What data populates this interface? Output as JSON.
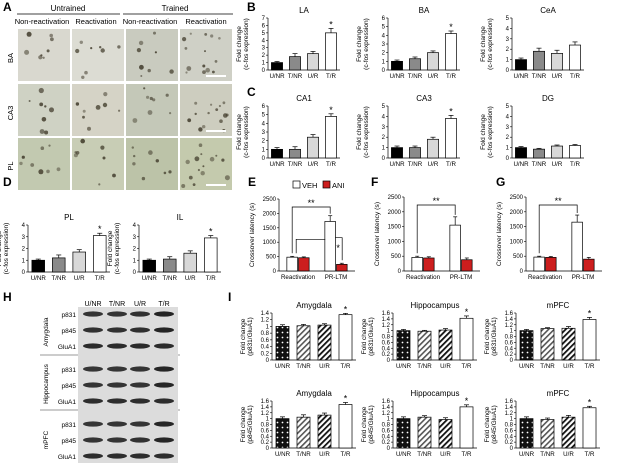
{
  "panel_letters": [
    "A",
    "B",
    "C",
    "D",
    "E",
    "F",
    "G",
    "H",
    "I"
  ],
  "panel_a": {
    "group_headers": [
      "Untrained",
      "Trained"
    ],
    "conditions": [
      "Non-reactivation",
      "Reactivation",
      "Non-reactivation",
      "Reactivation"
    ],
    "regions": [
      "BA",
      "CA3",
      "PL"
    ]
  },
  "panel_h": {
    "lanes": [
      "U/NR",
      "T/NR",
      "U/R",
      "T/R"
    ],
    "bands": [
      "p831",
      "p845",
      "GluA1"
    ],
    "regions": [
      "Amygdala",
      "Hippocampus",
      "mPFC"
    ]
  },
  "panel_e_legend": [
    "VEH",
    "ANI"
  ],
  "colors": {
    "black": "#000000",
    "grey": "#8a8a8a",
    "lightgrey": "#d8d8d8",
    "white": "#ffffff",
    "red": "#cc1e1e"
  },
  "chart_data": [
    {
      "id": "B-LA",
      "panel": "B",
      "type": "bar",
      "title": "LA",
      "ylabel": "Fold change (c-fos expression)",
      "categories": [
        "U/NR",
        "T/NR",
        "U/R",
        "T/R"
      ],
      "values": [
        1.0,
        1.8,
        2.2,
        5.0
      ],
      "errors": [
        0.15,
        0.4,
        0.3,
        0.6
      ],
      "ylim": [
        0,
        7
      ],
      "yticks": [
        0,
        1,
        2,
        3,
        4,
        5,
        6,
        7
      ],
      "fills": [
        "black",
        "grey",
        "lightgrey",
        "white"
      ],
      "star_on": [
        3
      ]
    },
    {
      "id": "B-BA",
      "panel": "B",
      "type": "bar",
      "title": "BA",
      "ylabel": "Fold change (c-fos expression)",
      "categories": [
        "U/NR",
        "T/NR",
        "U/R",
        "T/R"
      ],
      "values": [
        1.0,
        1.3,
        2.0,
        4.2
      ],
      "errors": [
        0.15,
        0.2,
        0.2,
        0.3
      ],
      "ylim": [
        0,
        6
      ],
      "yticks": [
        0,
        1,
        2,
        3,
        4,
        5,
        6
      ],
      "fills": [
        "black",
        "grey",
        "lightgrey",
        "white"
      ],
      "star_on": [
        3
      ]
    },
    {
      "id": "B-CeA",
      "panel": "B",
      "type": "bar",
      "title": "CeA",
      "ylabel": "Fold change (c-fos expression)",
      "categories": [
        "U/NR",
        "T/NR",
        "U/R",
        "T/R"
      ],
      "values": [
        1.0,
        1.8,
        1.6,
        2.4
      ],
      "errors": [
        0.15,
        0.3,
        0.3,
        0.3
      ],
      "ylim": [
        0,
        5
      ],
      "yticks": [
        0,
        1,
        2,
        3,
        4,
        5
      ],
      "fills": [
        "black",
        "grey",
        "lightgrey",
        "white"
      ],
      "star_on": []
    },
    {
      "id": "C-CA1",
      "panel": "C",
      "type": "bar",
      "title": "CA1",
      "ylabel": "Fold change (c-fos expression)",
      "categories": [
        "U/NR",
        "T/NR",
        "U/R",
        "T/R"
      ],
      "values": [
        1.0,
        1.0,
        2.4,
        4.8
      ],
      "errors": [
        0.2,
        0.3,
        0.3,
        0.3
      ],
      "ylim": [
        0,
        6
      ],
      "yticks": [
        0,
        1,
        2,
        3,
        4,
        5,
        6
      ],
      "fills": [
        "black",
        "grey",
        "lightgrey",
        "white"
      ],
      "star_on": [
        3
      ]
    },
    {
      "id": "C-CA3",
      "panel": "C",
      "type": "bar",
      "title": "CA3",
      "ylabel": "Fold change (c-fos expression)",
      "categories": [
        "U/NR",
        "T/NR",
        "U/R",
        "T/R"
      ],
      "values": [
        1.0,
        1.0,
        1.8,
        3.8
      ],
      "errors": [
        0.15,
        0.15,
        0.2,
        0.3
      ],
      "ylim": [
        0,
        5
      ],
      "yticks": [
        0,
        1,
        2,
        3,
        4,
        5
      ],
      "fills": [
        "black",
        "grey",
        "lightgrey",
        "white"
      ],
      "star_on": [
        3
      ]
    },
    {
      "id": "C-DG",
      "panel": "C",
      "type": "bar",
      "title": "DG",
      "ylabel": "Fold change (c-fos expression)",
      "categories": [
        "U/NR",
        "T/NR",
        "U/R",
        "T/R"
      ],
      "values": [
        1.0,
        0.85,
        1.15,
        1.2
      ],
      "errors": [
        0.1,
        0.08,
        0.1,
        0.1
      ],
      "ylim": [
        0,
        5
      ],
      "yticks": [
        0,
        1,
        2,
        3,
        4,
        5
      ],
      "fills": [
        "black",
        "grey",
        "lightgrey",
        "white"
      ],
      "star_on": []
    },
    {
      "id": "D-PL",
      "panel": "D",
      "type": "bar",
      "title": "PL",
      "ylabel": "Fold change (c-fos expression)",
      "categories": [
        "U/NR",
        "T/NR",
        "U/R",
        "T/R"
      ],
      "values": [
        1.0,
        1.2,
        1.7,
        3.1
      ],
      "errors": [
        0.1,
        0.25,
        0.2,
        0.2
      ],
      "ylim": [
        0,
        4
      ],
      "yticks": [
        0,
        1,
        2,
        3,
        4
      ],
      "fills": [
        "black",
        "grey",
        "lightgrey",
        "white"
      ],
      "star_on": [
        3
      ]
    },
    {
      "id": "D-IL",
      "panel": "D",
      "type": "bar",
      "title": "IL",
      "ylabel": "Fold change (c-fos expression)",
      "categories": [
        "U/NR",
        "T/NR",
        "U/R",
        "T/R"
      ],
      "values": [
        1.0,
        1.1,
        1.6,
        2.9
      ],
      "errors": [
        0.1,
        0.2,
        0.2,
        0.2
      ],
      "ylim": [
        0,
        4
      ],
      "yticks": [
        0,
        1,
        2,
        3,
        4
      ],
      "fills": [
        "black",
        "grey",
        "lightgrey",
        "white"
      ],
      "star_on": [
        3
      ]
    },
    {
      "id": "E",
      "panel": "E",
      "type": "grouped_bar",
      "ylabel": "Crossover latency (s)",
      "categories": [
        "Reactivation",
        "PR-LTM"
      ],
      "series": [
        {
          "name": "VEH",
          "values": [
            480,
            1720
          ],
          "errors": [
            30,
            200
          ]
        },
        {
          "name": "ANI",
          "values": [
            460,
            230
          ],
          "errors": [
            30,
            40
          ]
        }
      ],
      "ylim": [
        0,
        2500
      ],
      "yticks": [
        0,
        500,
        1000,
        1500,
        2000,
        2500
      ],
      "sig": [
        "**",
        "*"
      ]
    },
    {
      "id": "F",
      "panel": "F",
      "type": "grouped_bar",
      "ylabel": "Crossover latency (s)",
      "categories": [
        "Reactivation",
        "PR-LTM"
      ],
      "series": [
        {
          "name": "VEH",
          "values": [
            460,
            1550
          ],
          "errors": [
            40,
            280
          ]
        },
        {
          "name": "ANI",
          "values": [
            440,
            380
          ],
          "errors": [
            40,
            60
          ]
        }
      ],
      "ylim": [
        0,
        2500
      ],
      "yticks": [
        0,
        500,
        1000,
        1500,
        2000,
        2500
      ],
      "sig": [
        "**"
      ]
    },
    {
      "id": "G",
      "panel": "G",
      "type": "grouped_bar",
      "ylabel": "Crossover latency (s)",
      "categories": [
        "Reactivation",
        "PR-LTM"
      ],
      "series": [
        {
          "name": "VEH",
          "values": [
            470,
            1650
          ],
          "errors": [
            30,
            240
          ]
        },
        {
          "name": "ANI",
          "values": [
            460,
            400
          ],
          "errors": [
            30,
            60
          ]
        }
      ],
      "ylim": [
        0,
        2500
      ],
      "yticks": [
        0,
        500,
        1000,
        1500,
        2000,
        2500
      ],
      "sig": [
        "**"
      ]
    },
    {
      "id": "I-amy-p831",
      "panel": "I",
      "type": "bar",
      "title": "Amygdala",
      "ylabel": "Fold change (p831/GluA1)",
      "categories": [
        "U/NR",
        "T/NR",
        "U/R",
        "T/R"
      ],
      "values": [
        1.0,
        1.02,
        1.04,
        1.35
      ],
      "errors": [
        0.05,
        0.04,
        0.04,
        0.04
      ],
      "ylim": [
        0,
        1.4
      ],
      "yticks": [
        "0",
        "0.2",
        "0.4",
        "0.6",
        "0.8",
        "1",
        "1.2",
        "1.4"
      ],
      "patterns": [
        "dots",
        "stripe",
        "hatch",
        "white"
      ],
      "star_on": [
        3
      ]
    },
    {
      "id": "I-hip-p831",
      "panel": "I",
      "type": "bar",
      "title": "Hippocampus",
      "ylabel": "Fold change (p831/GluA1)",
      "categories": [
        "U/NR",
        "T/NR",
        "U/R",
        "T/R"
      ],
      "values": [
        1.0,
        0.98,
        1.02,
        1.42
      ],
      "errors": [
        0.04,
        0.03,
        0.05,
        0.08
      ],
      "ylim": [
        0,
        1.6
      ],
      "yticks": [
        "0",
        "0.2",
        "0.4",
        "0.6",
        "0.8",
        "1",
        "1.2",
        "1.4",
        "1.6"
      ],
      "patterns": [
        "dots",
        "stripe",
        "hatch",
        "white"
      ],
      "star_on": [
        3
      ]
    },
    {
      "id": "I-mpfc-p831",
      "panel": "I",
      "type": "bar",
      "title": "mPFC",
      "ylabel": "Fold change (p831/GluA1)",
      "categories": [
        "U/NR",
        "T/NR",
        "U/R",
        "T/R"
      ],
      "values": [
        1.0,
        1.07,
        1.08,
        1.38
      ],
      "errors": [
        0.04,
        0.03,
        0.06,
        0.07
      ],
      "ylim": [
        0,
        1.6
      ],
      "yticks": [
        "0",
        "0.2",
        "0.4",
        "0.6",
        "0.8",
        "1",
        "1.2",
        "1.4",
        "1.6"
      ],
      "patterns": [
        "dots",
        "stripe",
        "hatch",
        "white"
      ],
      "star_on": [
        3
      ]
    },
    {
      "id": "I-amy-p845",
      "panel": "I",
      "type": "bar",
      "title": "Amygdala",
      "ylabel": "Fold change (p845/GluA1)",
      "categories": [
        "U/NR",
        "T/NR",
        "U/R",
        "T/R"
      ],
      "values": [
        1.0,
        1.05,
        1.12,
        1.48
      ],
      "errors": [
        0.06,
        0.08,
        0.07,
        0.07
      ],
      "ylim": [
        0,
        1.6
      ],
      "yticks": [
        "0",
        "0.2",
        "0.4",
        "0.6",
        "0.8",
        "1",
        "1.2",
        "1.4",
        "1.6"
      ],
      "patterns": [
        "dots",
        "stripe",
        "hatch",
        "white"
      ],
      "star_on": [
        3
      ]
    },
    {
      "id": "I-hip-p845",
      "panel": "I",
      "type": "bar",
      "title": "Hippocampus",
      "ylabel": "Fold change (p845/GluA1)",
      "categories": [
        "U/NR",
        "T/NR",
        "U/R",
        "T/R"
      ],
      "values": [
        1.0,
        1.05,
        0.97,
        1.4
      ],
      "errors": [
        0.06,
        0.05,
        0.06,
        0.07
      ],
      "ylim": [
        0,
        1.6
      ],
      "yticks": [
        "0",
        "0.2",
        "0.4",
        "0.6",
        "0.8",
        "1",
        "1.2",
        "1.4",
        "1.6"
      ],
      "patterns": [
        "dots",
        "stripe",
        "hatch",
        "white"
      ],
      "star_on": [
        3
      ]
    },
    {
      "id": "I-mpfc-p845",
      "panel": "I",
      "type": "bar",
      "title": "mPFC",
      "ylabel": "Fold change (p845/GluA1)",
      "categories": [
        "U/NR",
        "T/NR",
        "U/R",
        "T/R"
      ],
      "values": [
        1.0,
        0.97,
        1.05,
        1.37
      ],
      "errors": [
        0.06,
        0.05,
        0.06,
        0.05
      ],
      "ylim": [
        0,
        1.6
      ],
      "yticks": [
        "0",
        "0.2",
        "0.4",
        "0.6",
        "0.8",
        "1",
        "1.2",
        "1.4",
        "1.6"
      ],
      "patterns": [
        "dots",
        "stripe",
        "hatch",
        "white"
      ],
      "star_on": [
        3
      ]
    }
  ]
}
